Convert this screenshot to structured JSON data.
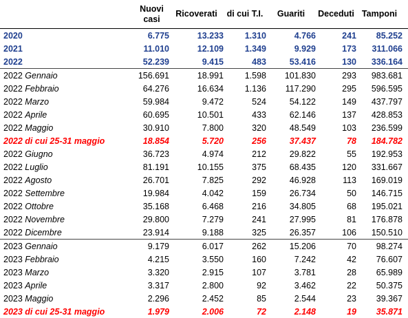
{
  "header": {
    "columns": [
      "Nuovi casi",
      "Ricoverati",
      "di cui T.I.",
      "Guariti",
      "Deceduti",
      "Tamponi"
    ]
  },
  "sections": [
    {
      "rows": [
        {
          "year": "2020",
          "color": "#1f3f8f",
          "values": [
            "6.775",
            "13.233",
            "1.310",
            "4.766",
            "241",
            "85.252"
          ]
        },
        {
          "year": "2021",
          "color": "#1f3f8f",
          "values": [
            "11.010",
            "12.109",
            "1.349",
            "9.929",
            "173",
            "311.066"
          ]
        },
        {
          "year": "2022",
          "color": "#1f3f8f",
          "values": [
            "52.239",
            "9.415",
            "483",
            "53.416",
            "130",
            "336.164"
          ]
        }
      ]
    },
    {
      "rows": [
        {
          "year": "2022",
          "period": "Gennaio",
          "values": [
            "156.691",
            "18.991",
            "1.598",
            "101.830",
            "293",
            "983.681"
          ]
        },
        {
          "year": "2022",
          "period": "Febbraio",
          "values": [
            "64.276",
            "16.634",
            "1.136",
            "117.290",
            "295",
            "596.595"
          ]
        },
        {
          "year": "2022",
          "period": "Marzo",
          "values": [
            "59.984",
            "9.472",
            "524",
            "54.122",
            "149",
            "437.797"
          ]
        },
        {
          "year": "2022",
          "period": "Aprile",
          "values": [
            "60.695",
            "10.501",
            "433",
            "62.146",
            "137",
            "428.853"
          ]
        },
        {
          "year": "2022",
          "period": "Maggio",
          "values": [
            "30.910",
            "7.800",
            "320",
            "48.549",
            "103",
            "236.599"
          ]
        },
        {
          "year": "2022",
          "period": "di cui 25-31 maggio",
          "color": "#ff0000",
          "values": [
            "18.854",
            "5.720",
            "256",
            "37.437",
            "78",
            "184.782"
          ]
        },
        {
          "year": "2022",
          "period": "Giugno",
          "values": [
            "36.723",
            "4.974",
            "212",
            "29.822",
            "55",
            "192.953"
          ]
        },
        {
          "year": "2022",
          "period": "Luglio",
          "values": [
            "81.191",
            "10.155",
            "375",
            "68.435",
            "120",
            "331.667"
          ]
        },
        {
          "year": "2022",
          "period": "Agosto",
          "values": [
            "26.701",
            "7.825",
            "292",
            "46.928",
            "113",
            "169.019"
          ]
        },
        {
          "year": "2022",
          "period": "Settembre",
          "values": [
            "19.984",
            "4.042",
            "159",
            "26.734",
            "50",
            "146.715"
          ]
        },
        {
          "year": "2022",
          "period": "Ottobre",
          "values": [
            "35.168",
            "6.468",
            "216",
            "34.805",
            "68",
            "195.021"
          ]
        },
        {
          "year": "2022",
          "period": "Novembre",
          "values": [
            "29.800",
            "7.279",
            "241",
            "27.995",
            "81",
            "176.878"
          ]
        },
        {
          "year": "2022",
          "period": "Dicembre",
          "values": [
            "23.914",
            "9.188",
            "325",
            "26.357",
            "106",
            "150.510"
          ]
        }
      ]
    },
    {
      "rows": [
        {
          "year": "2023",
          "period": "Gennaio",
          "values": [
            "9.179",
            "6.017",
            "262",
            "15.206",
            "70",
            "98.274"
          ]
        },
        {
          "year": "2023",
          "period": "Febbraio",
          "values": [
            "4.215",
            "3.550",
            "160",
            "7.242",
            "42",
            "76.607"
          ]
        },
        {
          "year": "2023",
          "period": "Marzo",
          "values": [
            "3.320",
            "2.915",
            "107",
            "3.781",
            "28",
            "65.989"
          ]
        },
        {
          "year": "2023",
          "period": "Aprile",
          "values": [
            "3.317",
            "2.800",
            "92",
            "3.462",
            "22",
            "50.375"
          ]
        },
        {
          "year": "2023",
          "period": "Maggio",
          "values": [
            "2.296",
            "2.452",
            "85",
            "2.544",
            "23",
            "39.367"
          ]
        },
        {
          "year": "2023",
          "period": "di cui 25-31 maggio",
          "color": "#ff0000",
          "values": [
            "1.979",
            "2.006",
            "72",
            "2.148",
            "19",
            "35.871"
          ]
        }
      ]
    }
  ]
}
